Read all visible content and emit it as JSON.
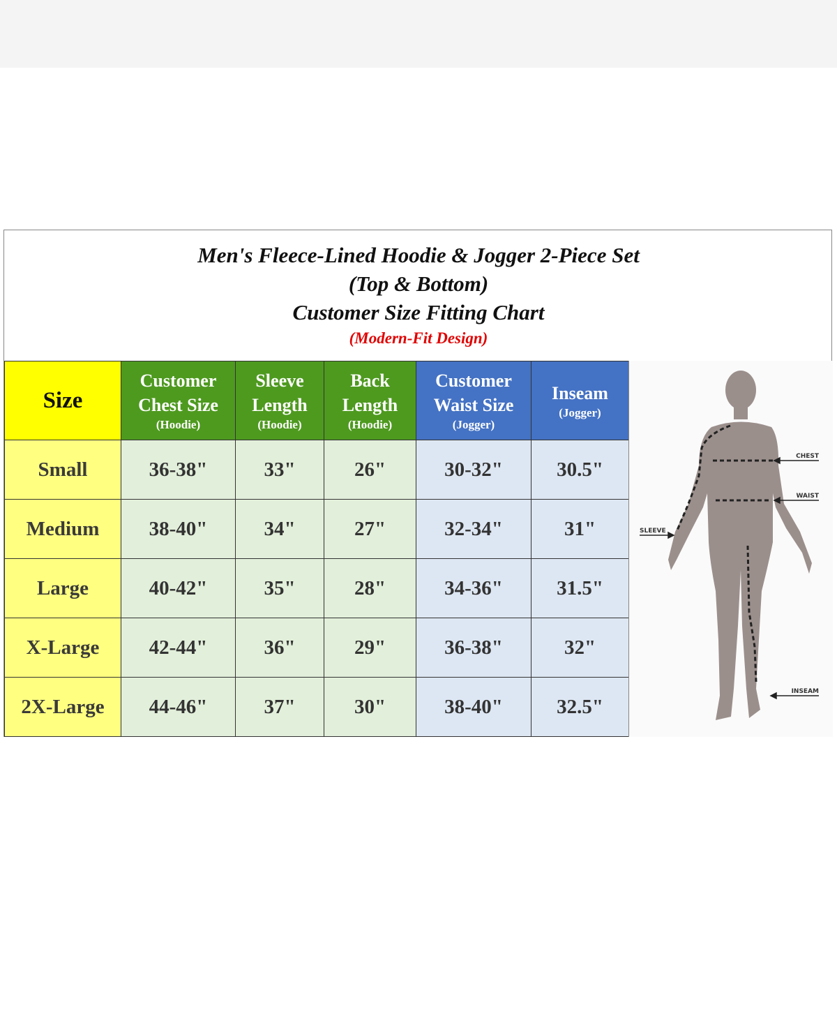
{
  "title": {
    "line1": "Men's Fleece-Lined Hoodie & Jogger 2-Piece Set",
    "line2": "(Top & Bottom)",
    "line3": "Customer Size Fitting Chart",
    "subtitle": "(Modern-Fit Design)"
  },
  "columns": [
    {
      "main": "Size",
      "sub": ""
    },
    {
      "main": "Customer Chest Size",
      "sub": "(Hoodie)"
    },
    {
      "main": "Sleeve Length",
      "sub": "(Hoodie)"
    },
    {
      "main": "Back Length",
      "sub": "(Hoodie)"
    },
    {
      "main": "Customer Waist Size",
      "sub": "(Jogger)"
    },
    {
      "main": "Inseam",
      "sub": "(Jogger)"
    }
  ],
  "rows": [
    [
      "Small",
      "36-38\"",
      "33\"",
      "26\"",
      "30-32\"",
      "30.5\""
    ],
    [
      "Medium",
      "38-40\"",
      "34\"",
      "27\"",
      "32-34\"",
      "31\""
    ],
    [
      "Large",
      "40-42\"",
      "35\"",
      "28\"",
      "34-36\"",
      "31.5\""
    ],
    [
      "X-Large",
      "42-44\"",
      "36\"",
      "29\"",
      "36-38\"",
      "32\""
    ],
    [
      "2X-Large",
      "44-46\"",
      "37\"",
      "30\"",
      "38-40\"",
      "32.5\""
    ]
  ],
  "figure_labels": {
    "chest": "CHEST",
    "waist": "WAIST",
    "sleeve": "SLEEVE",
    "inseam": "INSEAM"
  },
  "colors": {
    "size_header": "#ffff00",
    "size_cells": "#ffff80",
    "hoodie_header": "#4e9a1f",
    "hoodie_cells": "#e2efda",
    "jogger_header": "#4472c4",
    "jogger_cells": "#dde7f3",
    "subtitle": "#e00000"
  }
}
